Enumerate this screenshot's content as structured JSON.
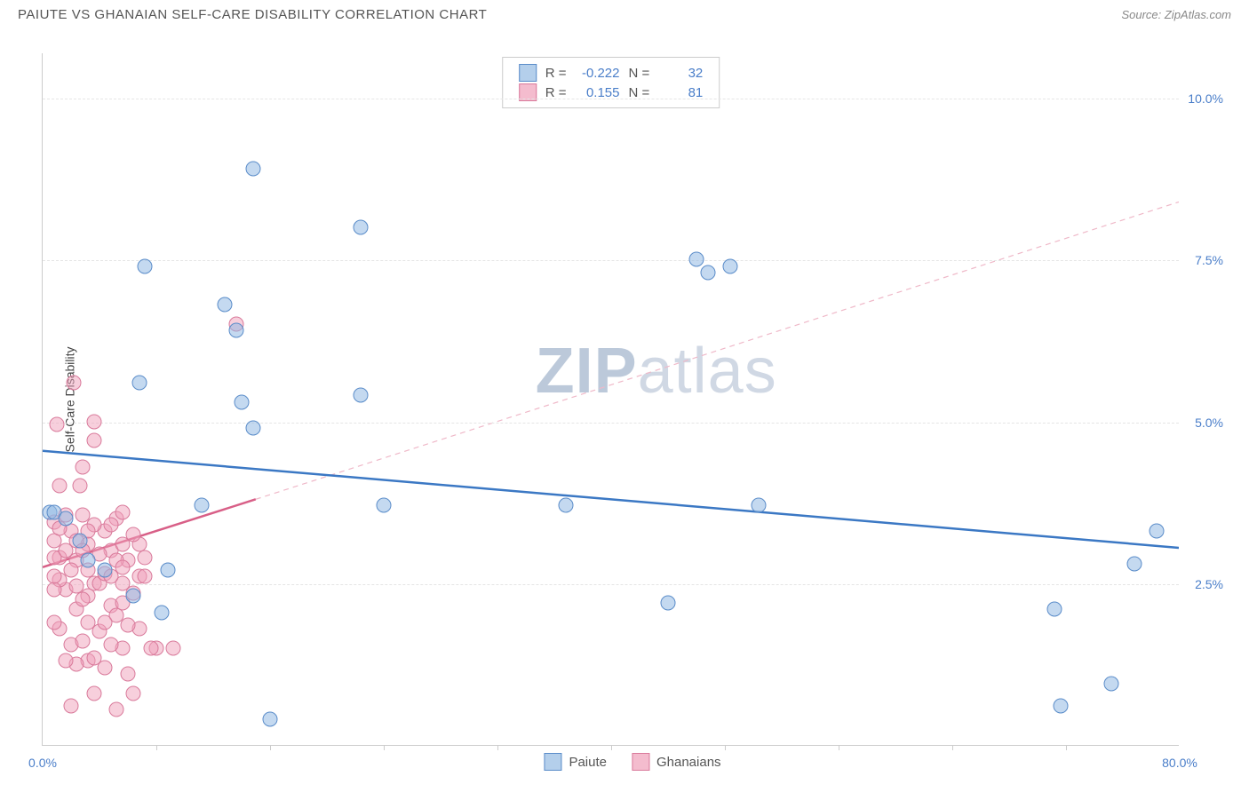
{
  "header": {
    "title": "PAIUTE VS GHANAIAN SELF-CARE DISABILITY CORRELATION CHART",
    "source": "Source: ZipAtlas.com"
  },
  "chart": {
    "type": "scatter",
    "ylabel": "Self-Care Disability",
    "watermark_a": "ZIP",
    "watermark_b": "atlas",
    "xlim": [
      0,
      80
    ],
    "ylim": [
      0,
      10.7
    ],
    "background_color": "#ffffff",
    "grid_color": "#e5e5e5",
    "yticks": [
      {
        "v": 2.5,
        "label": "2.5%"
      },
      {
        "v": 5.0,
        "label": "5.0%"
      },
      {
        "v": 7.5,
        "label": "7.5%"
      },
      {
        "v": 10.0,
        "label": "10.0%"
      }
    ],
    "xticks_minor": [
      8,
      16,
      24,
      32,
      40,
      48,
      56,
      64,
      72
    ],
    "xtick_labels": [
      {
        "v": 0,
        "label": "0.0%"
      },
      {
        "v": 80,
        "label": "80.0%"
      }
    ],
    "legend_stats": [
      {
        "color": "blue",
        "r_label": "R =",
        "r": "-0.222",
        "n_label": "N =",
        "n": "32"
      },
      {
        "color": "pink",
        "r_label": "R =",
        "r": "0.155",
        "n_label": "N =",
        "n": "81"
      }
    ],
    "series_legend": [
      {
        "color": "blue",
        "label": "Paiute"
      },
      {
        "color": "pink",
        "label": "Ghanaians"
      }
    ],
    "series": {
      "blue": {
        "color_fill": "rgba(148,186,227,0.55)",
        "color_stroke": "#5a8cc9",
        "marker_size": 17,
        "points": [
          [
            0.5,
            3.6
          ],
          [
            0.8,
            3.6
          ],
          [
            7.2,
            7.4
          ],
          [
            14.8,
            8.9
          ],
          [
            12.8,
            6.8
          ],
          [
            13.6,
            6.4
          ],
          [
            6.8,
            5.6
          ],
          [
            14.0,
            5.3
          ],
          [
            22.4,
            5.4
          ],
          [
            22.4,
            8.0
          ],
          [
            14.8,
            4.9
          ],
          [
            11.2,
            3.7
          ],
          [
            8.8,
            2.7
          ],
          [
            24.0,
            3.7
          ],
          [
            36.8,
            3.7
          ],
          [
            44.0,
            2.2
          ],
          [
            46.0,
            7.5
          ],
          [
            46.8,
            7.3
          ],
          [
            50.4,
            3.7
          ],
          [
            16.0,
            0.4
          ],
          [
            6.4,
            2.3
          ],
          [
            8.4,
            2.05
          ],
          [
            2.6,
            3.15
          ],
          [
            3.2,
            2.85
          ],
          [
            4.4,
            2.7
          ],
          [
            71.2,
            2.1
          ],
          [
            71.6,
            0.6
          ],
          [
            75.2,
            0.95
          ],
          [
            76.8,
            2.8
          ],
          [
            78.4,
            3.3
          ],
          [
            48.4,
            7.4
          ],
          [
            1.6,
            3.5
          ]
        ],
        "trend": {
          "x1": 0,
          "y1": 4.55,
          "x2": 80,
          "y2": 3.05,
          "color": "#3b78c4",
          "width": 2.5,
          "dash": null
        }
      },
      "pink": {
        "color_fill": "rgba(240,160,185,0.5)",
        "color_stroke": "#d97a9b",
        "marker_size": 17,
        "points": [
          [
            1.0,
            4.95
          ],
          [
            2.2,
            5.6
          ],
          [
            3.6,
            5.0
          ],
          [
            3.6,
            4.7
          ],
          [
            13.6,
            6.5
          ],
          [
            8.0,
            1.5
          ],
          [
            2.8,
            4.3
          ],
          [
            5.2,
            3.5
          ],
          [
            9.2,
            1.5
          ],
          [
            0.8,
            3.45
          ],
          [
            7.2,
            2.9
          ],
          [
            1.6,
            2.4
          ],
          [
            1.2,
            2.9
          ],
          [
            3.6,
            2.5
          ],
          [
            4.8,
            3.0
          ],
          [
            5.6,
            2.5
          ],
          [
            6.8,
            2.6
          ],
          [
            2.4,
            2.1
          ],
          [
            4.0,
            1.75
          ],
          [
            2.0,
            3.3
          ],
          [
            3.2,
            3.1
          ],
          [
            4.4,
            3.3
          ],
          [
            5.6,
            3.6
          ],
          [
            6.0,
            2.85
          ],
          [
            6.8,
            3.1
          ],
          [
            7.6,
            1.5
          ],
          [
            3.2,
            2.3
          ],
          [
            4.8,
            2.15
          ],
          [
            2.0,
            1.55
          ],
          [
            4.4,
            1.2
          ],
          [
            5.2,
            0.55
          ],
          [
            3.6,
            0.8
          ],
          [
            2.0,
            0.6
          ],
          [
            6.0,
            1.1
          ],
          [
            6.4,
            0.8
          ],
          [
            3.2,
            1.3
          ],
          [
            4.0,
            2.5
          ],
          [
            5.2,
            2.0
          ],
          [
            2.4,
            2.85
          ],
          [
            1.2,
            2.55
          ],
          [
            0.8,
            2.9
          ],
          [
            0.8,
            2.4
          ],
          [
            1.6,
            3.0
          ],
          [
            2.8,
            2.25
          ],
          [
            3.6,
            3.4
          ],
          [
            5.6,
            1.5
          ],
          [
            6.8,
            1.8
          ],
          [
            4.8,
            1.55
          ],
          [
            3.2,
            1.9
          ],
          [
            4.4,
            2.65
          ],
          [
            5.2,
            2.85
          ],
          [
            0.8,
            3.15
          ],
          [
            1.6,
            3.55
          ],
          [
            2.4,
            3.15
          ],
          [
            2.8,
            3.55
          ],
          [
            1.2,
            4.0
          ],
          [
            2.6,
            4.0
          ],
          [
            4.8,
            2.6
          ],
          [
            5.6,
            3.1
          ],
          [
            6.4,
            2.35
          ],
          [
            3.2,
            2.7
          ],
          [
            4.4,
            1.9
          ],
          [
            5.6,
            2.2
          ],
          [
            6.0,
            1.85
          ],
          [
            2.4,
            1.25
          ],
          [
            1.2,
            1.8
          ],
          [
            0.8,
            1.9
          ],
          [
            1.6,
            1.3
          ],
          [
            2.8,
            1.6
          ],
          [
            3.6,
            1.35
          ],
          [
            1.2,
            3.35
          ],
          [
            0.8,
            2.6
          ],
          [
            2.4,
            2.45
          ],
          [
            3.2,
            3.3
          ],
          [
            4.0,
            2.95
          ],
          [
            4.8,
            3.4
          ],
          [
            5.6,
            2.75
          ],
          [
            6.4,
            3.25
          ],
          [
            7.2,
            2.6
          ],
          [
            2.0,
            2.7
          ],
          [
            2.8,
            3.0
          ]
        ],
        "trend_solid": {
          "x1": 0,
          "y1": 2.75,
          "x2": 15,
          "y2": 3.8,
          "color": "#d85f87",
          "width": 2.5
        },
        "trend_dash": {
          "x1": 15,
          "y1": 3.8,
          "x2": 80,
          "y2": 8.4,
          "color": "#efb8c8",
          "width": 1.2
        }
      }
    }
  }
}
